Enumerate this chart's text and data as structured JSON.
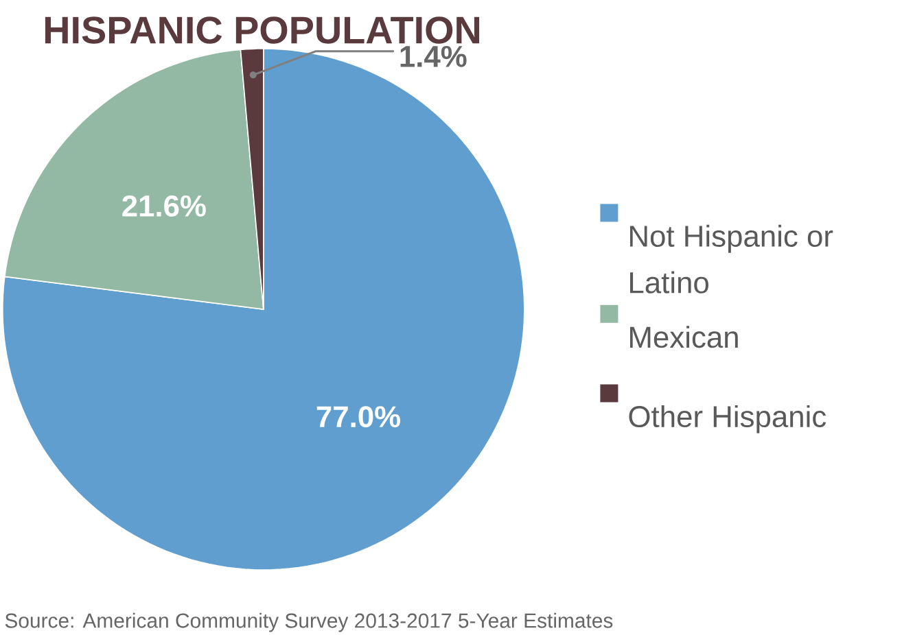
{
  "chart_data": {
    "type": "pie",
    "title": "HISPANIC POPULATION",
    "categories": [
      "Not Hispanic or Latino",
      "Mexican",
      "Other Hispanic"
    ],
    "values": [
      77.0,
      21.6,
      1.4
    ],
    "colors": [
      "#5f9ecf",
      "#93b9a5",
      "#5a3a3d"
    ],
    "value_labels": [
      "77.0%",
      "21.6%",
      "1.4%"
    ],
    "legend": "right",
    "annotations": [
      "Source: American Community Survey 2013-2017 5-Year Estimates"
    ]
  }
}
